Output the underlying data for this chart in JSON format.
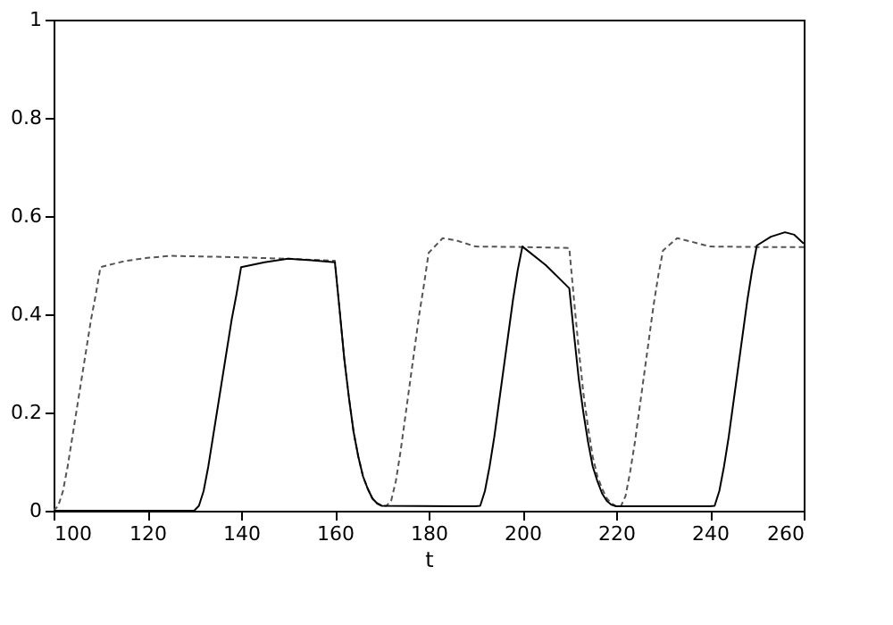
{
  "chart_data": {
    "type": "line",
    "xlabel": "t",
    "xlim": [
      100,
      260
    ],
    "xticks": [
      100,
      120,
      140,
      160,
      180,
      200,
      220,
      240,
      260
    ],
    "ylim": [
      0,
      1
    ],
    "yticks": [
      0,
      0.2,
      0.4,
      0.6,
      0.8,
      1
    ],
    "grid": false,
    "marker": "none",
    "series": [
      {
        "color": "#555555",
        "line_style": "dashed",
        "x": [
          100,
          101,
          102,
          103,
          104,
          105,
          106,
          107,
          108,
          109,
          110,
          115,
          120,
          125,
          130,
          140,
          150,
          160,
          161,
          162,
          163,
          164,
          165,
          166,
          167,
          168,
          169,
          170,
          171,
          172,
          173,
          174,
          175,
          176,
          177,
          178,
          179,
          180,
          183,
          186,
          190,
          200,
          210,
          211,
          212,
          213,
          214,
          215,
          216,
          217,
          218,
          219,
          220,
          221,
          222,
          223,
          224,
          225,
          226,
          227,
          228,
          229,
          230,
          233,
          236,
          240,
          250,
          260
        ],
        "values": [
          0,
          0.01,
          0.04,
          0.09,
          0.15,
          0.21,
          0.27,
          0.33,
          0.39,
          0.44,
          0.496,
          0.508,
          0.515,
          0.519,
          0.518,
          0.516,
          0.513,
          0.509,
          0.41,
          0.31,
          0.23,
          0.16,
          0.11,
          0.07,
          0.045,
          0.025,
          0.015,
          0.01,
          0.01,
          0.02,
          0.06,
          0.12,
          0.19,
          0.26,
          0.33,
          0.4,
          0.46,
          0.525,
          0.555,
          0.55,
          0.538,
          0.537,
          0.535,
          0.43,
          0.33,
          0.24,
          0.17,
          0.11,
          0.07,
          0.045,
          0.025,
          0.015,
          0.009,
          0.009,
          0.03,
          0.08,
          0.14,
          0.21,
          0.28,
          0.35,
          0.42,
          0.48,
          0.53,
          0.555,
          0.548,
          0.538,
          0.537,
          0.537
        ]
      },
      {
        "color": "#000000",
        "line_style": "solid",
        "x": [
          100,
          130,
          131,
          132,
          133,
          134,
          135,
          136,
          137,
          138,
          139,
          140,
          145,
          150,
          155,
          160,
          161,
          162,
          163,
          164,
          165,
          166,
          167,
          168,
          169,
          170,
          190,
          191,
          192,
          193,
          194,
          195,
          196,
          197,
          198,
          199,
          200,
          205,
          210,
          211,
          212,
          213,
          214,
          215,
          216,
          217,
          218,
          219,
          220,
          240,
          241,
          242,
          243,
          244,
          245,
          246,
          247,
          248,
          249,
          250,
          253,
          256,
          258,
          260
        ],
        "values": [
          0,
          0,
          0.01,
          0.04,
          0.09,
          0.15,
          0.21,
          0.27,
          0.33,
          0.39,
          0.44,
          0.496,
          0.506,
          0.513,
          0.51,
          0.506,
          0.41,
          0.31,
          0.23,
          0.16,
          0.11,
          0.07,
          0.045,
          0.025,
          0.015,
          0.01,
          0.009,
          0.01,
          0.04,
          0.09,
          0.15,
          0.22,
          0.29,
          0.36,
          0.43,
          0.49,
          0.538,
          0.5,
          0.453,
          0.36,
          0.27,
          0.2,
          0.14,
          0.09,
          0.06,
          0.035,
          0.02,
          0.012,
          0.009,
          0.009,
          0.01,
          0.04,
          0.09,
          0.15,
          0.22,
          0.29,
          0.36,
          0.43,
          0.49,
          0.54,
          0.558,
          0.567,
          0.562,
          0.544
        ]
      }
    ]
  }
}
